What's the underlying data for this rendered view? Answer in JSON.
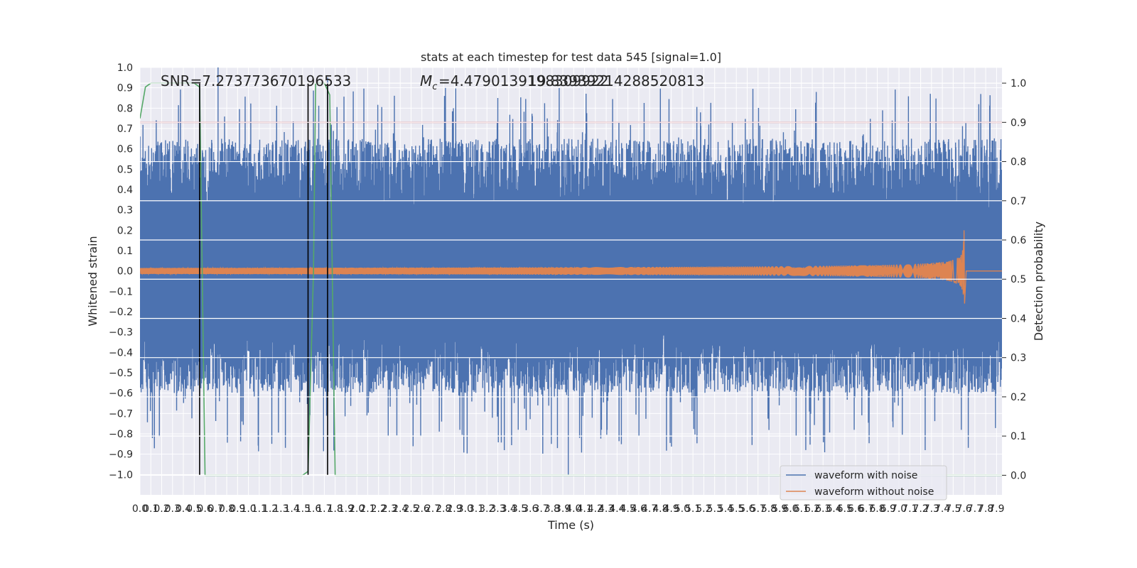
{
  "chart_data": {
    "type": "line",
    "title": "stats at each timestep for test data 545 [signal=1.0]",
    "xlabel": "Time (s)",
    "ylabel": "Whitened strain",
    "y2label": "Detection probability",
    "xlim": [
      0.0,
      7.95
    ],
    "ylim": [
      -1.1,
      1.0
    ],
    "y2lim": [
      -0.05,
      1.04
    ],
    "x_ticks": [
      "0.0",
      "0.1",
      "0.2",
      "0.3",
      "0.4",
      "0.5",
      "0.6",
      "0.7",
      "0.8",
      "0.9",
      "1.0",
      "1.1",
      "1.2",
      "1.3",
      "1.4",
      "1.5",
      "1.6",
      "1.7",
      "1.8",
      "1.9",
      "2.0",
      "2.1",
      "2.2",
      "2.3",
      "2.4",
      "2.5",
      "2.6",
      "2.7",
      "2.8",
      "2.9",
      "3.0",
      "3.1",
      "3.2",
      "3.3",
      "3.4",
      "3.5",
      "3.6",
      "3.7",
      "3.8",
      "3.9",
      "4.0",
      "4.1",
      "4.2",
      "4.3",
      "4.4",
      "4.5",
      "4.6",
      "4.7",
      "4.8",
      "4.9",
      "5.0",
      "5.1",
      "5.2",
      "5.3",
      "5.4",
      "5.5",
      "5.6",
      "5.7",
      "5.8",
      "5.9",
      "6.0",
      "6.1",
      "6.2",
      "6.3",
      "6.4",
      "6.5",
      "6.6",
      "6.7",
      "6.8",
      "6.9",
      "7.0",
      "7.1",
      "7.2",
      "7.3",
      "7.4",
      "7.5",
      "7.6",
      "7.7",
      "7.8",
      "7.9"
    ],
    "y_ticks": [
      "1.0",
      "0.9",
      "0.8",
      "0.7",
      "0.6",
      "0.5",
      "0.4",
      "0.3",
      "0.2",
      "0.1",
      "0.0",
      "−0.1",
      "−0.2",
      "−0.3",
      "−0.4",
      "−0.5",
      "−0.6",
      "−0.7",
      "−0.8",
      "−0.9",
      "−1.0"
    ],
    "y2_ticks": [
      "1.0",
      "0.9",
      "0.8",
      "0.7",
      "0.6",
      "0.5",
      "0.4",
      "0.3",
      "0.2",
      "0.1",
      "0.0"
    ],
    "annotations": {
      "snr": "SNR=7.273773670196533",
      "mc": "=4.4790139198309922",
      "mc_overlap": "19.83939214288520813"
    },
    "series": [
      {
        "name": "waveform with noise",
        "color": "#4c72b0",
        "envelope_typical": 0.45,
        "spikes_max": 1.0,
        "spikes_min": -1.0
      },
      {
        "name": "waveform without noise",
        "color": "#dd8452",
        "amplitude_start": 0.015,
        "peak_time": 7.6,
        "peak_max": 0.2,
        "peak_min": -0.16,
        "post_merger_value": 0.0
      },
      {
        "name": "detection probability",
        "color": "#55a868",
        "axis": "y2",
        "x": [
          0.0,
          0.05,
          0.1,
          0.5,
          0.55,
          0.6,
          0.65,
          0.7,
          1.5,
          1.55,
          1.6,
          1.62,
          1.65,
          1.7,
          1.75,
          1.8,
          1.85,
          7.95
        ],
        "values": [
          0.91,
          0.99,
          1.0,
          1.0,
          0.99,
          0.0,
          0.0,
          0.0,
          0.0,
          0.01,
          0.52,
          1.0,
          1.0,
          1.0,
          0.97,
          0.0,
          0.0,
          0.0
        ]
      }
    ],
    "threshold_line": {
      "value": 0.9,
      "axis": "y2",
      "color": "#c44e52"
    },
    "vertical_lines": [
      0.55,
      1.55,
      1.73
    ],
    "legend": {
      "position": "bottom-right",
      "entries": [
        "waveform with noise",
        "waveform without noise"
      ]
    }
  }
}
